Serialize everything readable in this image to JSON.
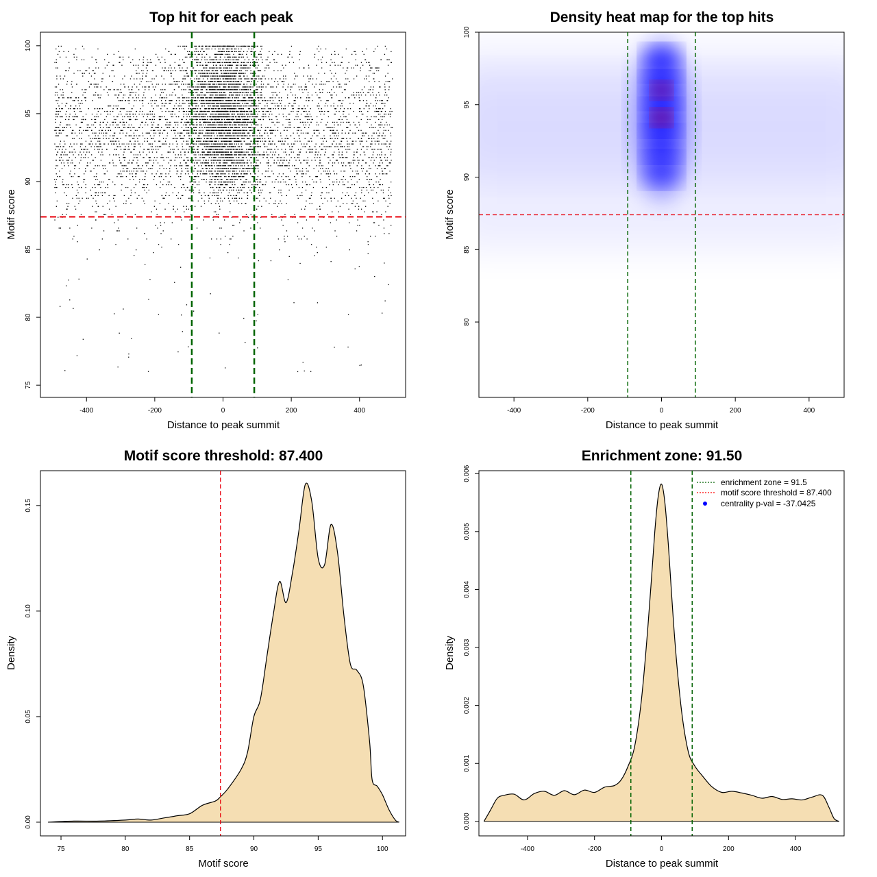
{
  "chart_data": [
    {
      "type": "scatter",
      "title": "Top hit for each peak",
      "xlabel": "Distance to peak summit",
      "ylabel": "Motif score",
      "xlim": [
        -535,
        535
      ],
      "ylim": [
        74.1,
        101.0
      ],
      "xticks": [
        -400,
        -200,
        0,
        200,
        400
      ],
      "yticks": [
        75,
        80,
        85,
        90,
        95,
        100
      ],
      "hline": 87.4,
      "vlines": [
        -91.5,
        91.5
      ],
      "point_model": {
        "x_range": [
          -495,
          495
        ],
        "central_cluster": {
          "x_center": 0,
          "x_sd": 55,
          "y_peaks": [
            92.0,
            94.2,
            96.0,
            98.0
          ]
        },
        "background": {
          "y_center": 93.5,
          "y_sd": 3.2
        }
      }
    },
    {
      "type": "heatmap",
      "title": "Density heat map for the top hits",
      "xlabel": "Distance to peak summit",
      "ylabel": "Motif score",
      "xlim": [
        -495,
        495
      ],
      "ylim": [
        74.8,
        100.0
      ],
      "xticks": [
        -400,
        -200,
        0,
        200,
        400
      ],
      "yticks": [
        80,
        85,
        90,
        95,
        100
      ],
      "hline": 87.4,
      "vlines": [
        -91.5,
        91.5
      ],
      "hotspots": [
        {
          "x": 0,
          "y": 94.1,
          "weight": 1.0
        },
        {
          "x": 0,
          "y": 96.0,
          "weight": 0.85
        },
        {
          "x": 0,
          "y": 92.3,
          "weight": 0.55
        },
        {
          "x": 0,
          "y": 97.9,
          "weight": 0.55
        },
        {
          "x": 0,
          "y": 90.5,
          "weight": 0.3
        }
      ]
    },
    {
      "type": "area",
      "title": "Motif score threshold: 87.400",
      "xlabel": "Motif score",
      "ylabel": "Density",
      "xlim": [
        73.4,
        101.8
      ],
      "ylim": [
        -0.0065,
        0.1665
      ],
      "xticks": [
        75,
        80,
        85,
        90,
        95,
        100
      ],
      "yticks": [
        0.0,
        0.05,
        0.1,
        0.15
      ],
      "ytick_labels": [
        "0.00",
        "0.05",
        "0.10",
        "0.15"
      ],
      "vline": 87.4,
      "x": [
        74,
        76,
        78,
        80,
        81,
        82,
        83,
        84,
        85,
        86,
        87,
        87.4,
        88,
        89,
        89.5,
        90,
        90.5,
        91,
        91.5,
        92,
        92.5,
        93,
        93.5,
        94,
        94.5,
        95,
        95.5,
        96,
        96.5,
        97,
        97.5,
        98,
        98.5,
        99,
        99.2,
        99.6,
        100,
        100.5,
        101,
        101.3
      ],
      "y": [
        0.0,
        0.0005,
        0.0005,
        0.001,
        0.0015,
        0.001,
        0.002,
        0.003,
        0.004,
        0.008,
        0.01,
        0.012,
        0.016,
        0.025,
        0.033,
        0.05,
        0.058,
        0.078,
        0.098,
        0.114,
        0.104,
        0.118,
        0.138,
        0.16,
        0.152,
        0.125,
        0.122,
        0.141,
        0.128,
        0.098,
        0.075,
        0.072,
        0.065,
        0.038,
        0.02,
        0.017,
        0.013,
        0.006,
        0.001,
        0.0
      ]
    },
    {
      "type": "area",
      "title": "Enrichment zone: 91.50",
      "xlabel": "Distance to peak summit",
      "ylabel": "Density",
      "xlim": [
        -545,
        545
      ],
      "ylim": [
        -0.00025,
        0.00605
      ],
      "xticks": [
        -400,
        -200,
        0,
        200,
        400
      ],
      "yticks": [
        0.0,
        0.001,
        0.002,
        0.003,
        0.004,
        0.005,
        0.006
      ],
      "ytick_labels": [
        "0.000",
        "0.001",
        "0.002",
        "0.003",
        "0.004",
        "0.005",
        "0.006"
      ],
      "vlines": [
        -91.5,
        91.5
      ],
      "x": [
        -530,
        -510,
        -490,
        -470,
        -440,
        -410,
        -380,
        -350,
        -320,
        -290,
        -260,
        -230,
        -200,
        -170,
        -140,
        -120,
        -100,
        -80,
        -60,
        -40,
        -20,
        -10,
        0,
        10,
        20,
        40,
        60,
        80,
        100,
        120,
        150,
        180,
        210,
        240,
        270,
        300,
        330,
        360,
        390,
        420,
        450,
        480,
        500,
        515,
        530
      ],
      "y": [
        0.0,
        0.0002,
        0.0004,
        0.00045,
        0.00047,
        0.00037,
        0.00048,
        0.00052,
        0.00045,
        0.00053,
        0.00046,
        0.00054,
        0.0005,
        0.00059,
        0.00062,
        0.00072,
        0.00095,
        0.0013,
        0.0021,
        0.0034,
        0.005,
        0.0056,
        0.00582,
        0.0055,
        0.0048,
        0.0031,
        0.0019,
        0.0012,
        0.00095,
        0.0008,
        0.0006,
        0.0005,
        0.00052,
        0.00049,
        0.00045,
        0.0004,
        0.00043,
        0.00038,
        0.00039,
        0.00037,
        0.00042,
        0.00045,
        0.00024,
        5e-05,
        0.0
      ],
      "legend": {
        "placement": "top-right",
        "entries": [
          {
            "label": "enrichment zone = 91.5",
            "style": "dotted",
            "color": "#006400"
          },
          {
            "label": "motif score threshold = 87.400",
            "style": "dotted",
            "color": "#ff0000"
          },
          {
            "label": "centrality p-val = -37.0425",
            "style": "point",
            "color": "#0000ff"
          }
        ]
      }
    }
  ],
  "colors": {
    "fill": "#f5deb3",
    "zone_line": "#006400",
    "threshold_line": "#e8000b",
    "points": "#000000",
    "heat_low": "#0000ff",
    "heat_high": "#ff0000"
  }
}
